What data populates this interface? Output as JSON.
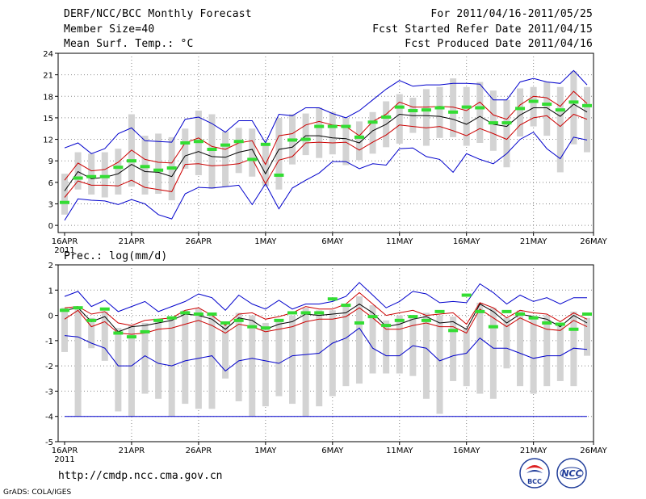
{
  "header": {
    "title": "DERF/NCC/BCC Monthly Forecast",
    "member_size": "Member Size=40",
    "variable": "Mean Surf. Temp.: °C",
    "period": "For 2011/04/16-2011/05/25",
    "started": "Fcst Started Refer Date 2011/04/15",
    "produced": "Fcst Produced Date 2011/04/16"
  },
  "footer": {
    "url": "http://cmdp.ncc.cma.gov.cn",
    "grads": "GrADS: COLA/IGES",
    "logo1_text": "BCC",
    "logo2_text": "NCC"
  },
  "colors": {
    "max_min": "#0000cc",
    "spread": "#cc0000",
    "mean": "#000000",
    "box": "#d3d3d3",
    "obs": "#33dd33",
    "grid": "#888888"
  },
  "chart_data": [
    {
      "type": "line",
      "title": "Mean Surf. Temp.: °C",
      "x_tick_labels": [
        "16APR",
        "21APR",
        "26APR",
        "1MAY",
        "6MAY",
        "11MAY",
        "16MAY",
        "21MAY",
        "26MAY"
      ],
      "x_year_label": "2011",
      "xlim": [
        1,
        40
      ],
      "ylim": [
        -1,
        24
      ],
      "y_ticks": [
        0,
        3,
        6,
        9,
        12,
        15,
        18,
        21,
        24
      ],
      "series": [
        {
          "name": "max",
          "values": [
            10.8,
            11.5,
            10,
            10.7,
            12.8,
            13.6,
            11.8,
            11.7,
            11.6,
            14.8,
            15.1,
            14.2,
            13,
            14.6,
            14.6,
            11.5,
            15.5,
            15.3,
            16.4,
            16.4,
            15.6,
            15,
            16,
            17.5,
            19,
            20.2,
            19.4,
            19.6,
            19.6,
            19.8,
            19.8,
            19.7,
            17.5,
            17.5,
            20,
            20.5,
            20,
            19.8,
            21.6,
            19.6
          ]
        },
        {
          "name": "upper",
          "values": [
            6.3,
            8.7,
            7.6,
            7.8,
            8.8,
            10.5,
            9.2,
            8.8,
            8.7,
            11.5,
            12.2,
            11,
            10.6,
            11.5,
            11.8,
            8.5,
            12.5,
            12.8,
            14,
            14.5,
            14,
            13.8,
            12.5,
            14.5,
            15.5,
            17.2,
            16.5,
            16.5,
            16.6,
            16.5,
            16,
            17.2,
            15.4,
            14.8,
            16.8,
            18,
            17.8,
            16.6,
            18.7,
            17
          ]
        },
        {
          "name": "mean",
          "values": [
            4.8,
            7.5,
            6.5,
            6.7,
            7.2,
            8.5,
            7.5,
            7.4,
            6.8,
            9.7,
            10.3,
            9.6,
            9.5,
            10.2,
            10.6,
            7.2,
            10.6,
            10.9,
            12.5,
            12.5,
            12.2,
            12.1,
            11.5,
            13.2,
            14.1,
            15.5,
            15.3,
            15.3,
            15.2,
            14.8,
            14.1,
            15.2,
            14.1,
            13.8,
            15.4,
            16.4,
            16.4,
            15.2,
            16.9,
            15.8
          ]
        },
        {
          "name": "lower",
          "values": [
            3.9,
            6.2,
            5.6,
            5.6,
            5.5,
            6.3,
            5.3,
            5,
            4.7,
            8.5,
            8.6,
            8.3,
            8.4,
            8.6,
            9.3,
            5.8,
            9.1,
            9.6,
            11.5,
            11.6,
            11.5,
            11.6,
            10.5,
            11.6,
            12.6,
            14,
            13.8,
            13.6,
            13.8,
            13.2,
            12.5,
            13.5,
            12.8,
            12,
            14,
            15,
            15.3,
            13.8,
            15.5,
            14.8
          ]
        },
        {
          "name": "min",
          "values": [
            0.7,
            3.7,
            3.5,
            3.4,
            2.9,
            3.6,
            3,
            1.5,
            0.9,
            4.4,
            5.3,
            5.2,
            5.4,
            5.6,
            2.9,
            5.8,
            2.3,
            5.2,
            6.3,
            7.3,
            8.9,
            8.9,
            7.9,
            8.6,
            8.4,
            10.7,
            10.8,
            9.6,
            9.2,
            7.4,
            10,
            9.2,
            8.6,
            10,
            12,
            13,
            10.7,
            9.3,
            12.3,
            11.9
          ]
        },
        {
          "name": "box_top",
          "values": [
            7.2,
            10.2,
            10,
            10.2,
            10.7,
            15.5,
            12.5,
            12.8,
            12.3,
            13.5,
            16,
            15.5,
            13.1,
            13.6,
            13.5,
            11.3,
            15,
            15.5,
            15.6,
            16.4,
            15.8,
            15,
            14.5,
            15.8,
            17.3,
            18.3,
            17.8,
            19,
            19.3,
            20.5,
            19.3,
            20,
            18.8,
            17.5,
            19.1,
            19.3,
            20,
            19.3,
            21.5,
            19.3
          ]
        },
        {
          "name": "box_bottom",
          "values": [
            1.5,
            5,
            4.3,
            3.9,
            4.3,
            5.4,
            4.3,
            4.4,
            3.5,
            7.9,
            7,
            5.1,
            5.4,
            7.3,
            6.8,
            5.5,
            5,
            8.5,
            9.8,
            9.4,
            9.9,
            8.4,
            9.1,
            10,
            10.9,
            11.4,
            12.9,
            11.1,
            12.2,
            12.3,
            11.1,
            11.5,
            10.4,
            8.1,
            12.4,
            13.8,
            12.5,
            7.4,
            11.3,
            10.2
          ]
        },
        {
          "name": "observed",
          "values": [
            3.2,
            6.6,
            6.8,
            6.8,
            8.1,
            9,
            8.2,
            7.7,
            8,
            11.5,
            11.7,
            10.6,
            11.2,
            11.7,
            9.2,
            11.3,
            7,
            11.9,
            12,
            13.8,
            13.8,
            13.8,
            12.3,
            14.4,
            15.1,
            16.5,
            16,
            16.1,
            16.4,
            15.8,
            16.5,
            16.4,
            14.3,
            14.3,
            16.3,
            17.3,
            16.9,
            16.1,
            17.2,
            16.7
          ]
        }
      ]
    },
    {
      "type": "line",
      "title": "Prec.: log(mm/d)",
      "x_tick_labels": [
        "16APR",
        "21APR",
        "26APR",
        "1MAY",
        "6MAY",
        "11MAY",
        "16MAY",
        "21MAY",
        "26MAY"
      ],
      "x_year_label": "2011",
      "xlim": [
        1,
        40
      ],
      "ylim": [
        -5,
        2
      ],
      "y_ticks": [
        -5,
        -4,
        -3,
        -2,
        -1,
        0,
        1,
        2
      ],
      "series": [
        {
          "name": "max",
          "values": [
            0.75,
            0.95,
            0.35,
            0.6,
            0.15,
            0.35,
            0.55,
            0.15,
            0.35,
            0.55,
            0.85,
            0.7,
            0.2,
            0.8,
            0.45,
            0.25,
            0.6,
            0.25,
            0.45,
            0.45,
            0.55,
            0.75,
            1.3,
            0.8,
            0.3,
            0.55,
            0.95,
            0.85,
            0.5,
            0.55,
            0.5,
            1.25,
            0.9,
            0.45,
            0.8,
            0.55,
            0.7,
            0.45,
            0.7,
            0.7
          ]
        },
        {
          "name": "upper",
          "values": [
            0.3,
            0.35,
            0.05,
            0.15,
            -0.3,
            -0.4,
            -0.2,
            -0.15,
            -0.1,
            0.2,
            0.3,
            0.0,
            -0.4,
            0.05,
            0.1,
            -0.15,
            -0.05,
            0.1,
            0.35,
            0.25,
            0.25,
            0.45,
            0.9,
            0.45,
            0.0,
            0.1,
            0.2,
            0.0,
            0.05,
            0.1,
            -0.35,
            0.5,
            0.3,
            -0.1,
            0.2,
            0.1,
            0.05,
            -0.25,
            0.1,
            -0.15
          ]
        },
        {
          "name": "mean",
          "values": [
            0.2,
            0.3,
            -0.25,
            -0.05,
            -0.65,
            -0.45,
            -0.4,
            -0.3,
            -0.2,
            0.05,
            0.0,
            -0.15,
            -0.55,
            -0.1,
            -0.2,
            -0.55,
            -0.35,
            -0.25,
            0.05,
            0.0,
            0.05,
            0.1,
            0.45,
            0.1,
            -0.45,
            -0.35,
            -0.15,
            -0.05,
            -0.3,
            -0.25,
            -0.55,
            0.45,
            0.15,
            -0.3,
            0.05,
            -0.05,
            -0.15,
            -0.45,
            0.0,
            -0.3
          ]
        },
        {
          "name": "lower",
          "values": [
            -0.15,
            0.2,
            -0.45,
            -0.25,
            -0.7,
            -0.75,
            -0.7,
            -0.55,
            -0.5,
            -0.35,
            -0.2,
            -0.4,
            -0.7,
            -0.35,
            -0.45,
            -0.65,
            -0.55,
            -0.45,
            -0.25,
            -0.15,
            -0.15,
            -0.05,
            0.3,
            -0.1,
            -0.55,
            -0.55,
            -0.4,
            -0.3,
            -0.45,
            -0.45,
            -0.7,
            0.25,
            -0.1,
            -0.45,
            -0.1,
            -0.35,
            -0.55,
            -0.6,
            -0.2,
            -0.45
          ]
        },
        {
          "name": "min",
          "values": [
            -0.8,
            -0.85,
            -1.1,
            -1.3,
            -2.0,
            -2.0,
            -1.6,
            -1.9,
            -2.0,
            -1.8,
            -1.7,
            -1.6,
            -2.2,
            -1.8,
            -1.7,
            -1.8,
            -1.9,
            -1.6,
            -1.55,
            -1.5,
            -1.1,
            -0.9,
            -0.5,
            -1.3,
            -1.6,
            -1.6,
            -1.2,
            -1.3,
            -1.8,
            -1.6,
            -1.5,
            -0.9,
            -1.3,
            -1.3,
            -1.5,
            -1.7,
            -1.6,
            -1.6,
            -1.3,
            -1.35
          ]
        },
        {
          "name": "floor",
          "values": [
            -4,
            -4,
            -4,
            -4,
            -4,
            -4,
            -4,
            -4,
            -4,
            -4,
            -4,
            -4,
            -4,
            -4,
            -4,
            -4,
            -4,
            -4,
            -4,
            -4,
            -4,
            -4,
            -4,
            -4,
            -4,
            -4,
            -4,
            -4,
            -4,
            -4,
            -4,
            -4,
            -4,
            -4,
            -4,
            -4,
            -4,
            -4,
            -4,
            -4
          ]
        },
        {
          "name": "box_top",
          "values": [
            0.3,
            0.3,
            -0.1,
            0.15,
            -0.5,
            -0.4,
            -0.3,
            -0.2,
            -0.1,
            0.2,
            0.25,
            0.0,
            -0.4,
            0.1,
            0.0,
            -0.3,
            -0.2,
            0.0,
            0.3,
            0.2,
            0.2,
            0.4,
            0.75,
            0.4,
            -0.2,
            0.0,
            0.0,
            0.1,
            0.0,
            -0.05,
            -0.5,
            0.5,
            0.3,
            -0.1,
            0.2,
            0.0,
            0.0,
            -0.3,
            0.15,
            -0.1
          ]
        },
        {
          "name": "box_bottom",
          "values": [
            -1.45,
            -4,
            -1.3,
            -1.8,
            -3.8,
            -4,
            -3.1,
            -3.3,
            -4,
            -3.5,
            -3.7,
            -3.7,
            -2.5,
            -3.4,
            -4,
            -3.6,
            -3.2,
            -3.5,
            -4,
            -3.6,
            -3.2,
            -2.8,
            -2.7,
            -2.3,
            -2.3,
            -2.3,
            -2.4,
            -3.3,
            -3.9,
            -2.6,
            -2.8,
            -3.1,
            -3.3,
            -2.1,
            -2.8,
            -3.1,
            -2.8,
            -2.6,
            -2.8,
            -1.6
          ]
        },
        {
          "name": "observed",
          "values": [
            0.2,
            0.3,
            -0.2,
            0.25,
            -0.7,
            -0.85,
            -0.65,
            -0.2,
            -0.1,
            0.1,
            0.05,
            0.05,
            -0.3,
            -0.2,
            -0.45,
            -0.5,
            -0.2,
            0.1,
            0.1,
            0.1,
            0.65,
            0.4,
            -0.3,
            -0.05,
            -0.4,
            -0.2,
            -0.05,
            -0.2,
            0.15,
            -0.6,
            0.8,
            0.15,
            -0.45,
            0.15,
            0.05,
            -0.1,
            -0.3,
            -0.35,
            -0.55,
            0.05
          ]
        }
      ]
    }
  ]
}
